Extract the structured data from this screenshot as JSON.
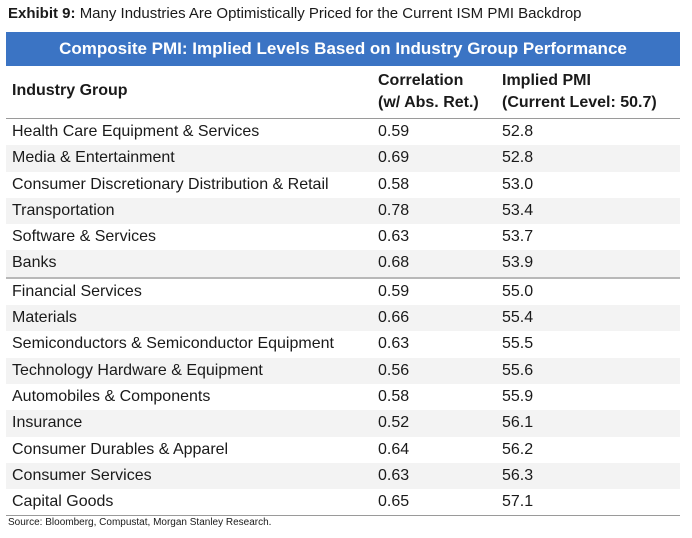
{
  "exhibit": {
    "label": "Exhibit 9:",
    "title": "Many Industries Are Optimistically Priced for the Current ISM PMI Backdrop"
  },
  "table": {
    "banner": "Composite PMI: Implied Levels Based on Industry Group Performance",
    "headers": {
      "industry": "Industry Group",
      "correlation_line1": "Correlation",
      "correlation_line2": "(w/ Abs. Ret.)",
      "implied_line1": "Implied PMI",
      "implied_line2": "(Current Level: 50.7)"
    },
    "rows_top": [
      {
        "industry": "Health Care Equipment & Services",
        "correlation": "0.59",
        "implied": "52.8"
      },
      {
        "industry": "Media & Entertainment",
        "correlation": "0.69",
        "implied": "52.8"
      },
      {
        "industry": "Consumer Discretionary Distribution & Retail",
        "correlation": "0.58",
        "implied": "53.0"
      },
      {
        "industry": "Transportation",
        "correlation": "0.78",
        "implied": "53.4"
      },
      {
        "industry": "Software & Services",
        "correlation": "0.63",
        "implied": "53.7"
      },
      {
        "industry": "Banks",
        "correlation": "0.68",
        "implied": "53.9"
      }
    ],
    "rows_bottom": [
      {
        "industry": "Financial Services",
        "correlation": "0.59",
        "implied": "55.0"
      },
      {
        "industry": "Materials",
        "correlation": "0.66",
        "implied": "55.4"
      },
      {
        "industry": "Semiconductors & Semiconductor Equipment",
        "correlation": "0.63",
        "implied": "55.5"
      },
      {
        "industry": "Technology Hardware & Equipment",
        "correlation": "0.56",
        "implied": "55.6"
      },
      {
        "industry": "Automobiles & Components",
        "correlation": "0.58",
        "implied": "55.9"
      },
      {
        "industry": "Insurance",
        "correlation": "0.52",
        "implied": "56.1"
      },
      {
        "industry": "Consumer Durables & Apparel",
        "correlation": "0.64",
        "implied": "56.2"
      },
      {
        "industry": "Consumer Services",
        "correlation": "0.63",
        "implied": "56.3"
      },
      {
        "industry": "Capital Goods",
        "correlation": "0.65",
        "implied": "57.1"
      }
    ]
  },
  "source": "Source: Bloomberg, Compustat, Morgan Stanley Research.",
  "colors": {
    "banner_bg": "#3b74c4",
    "banner_text": "#ffffff"
  }
}
